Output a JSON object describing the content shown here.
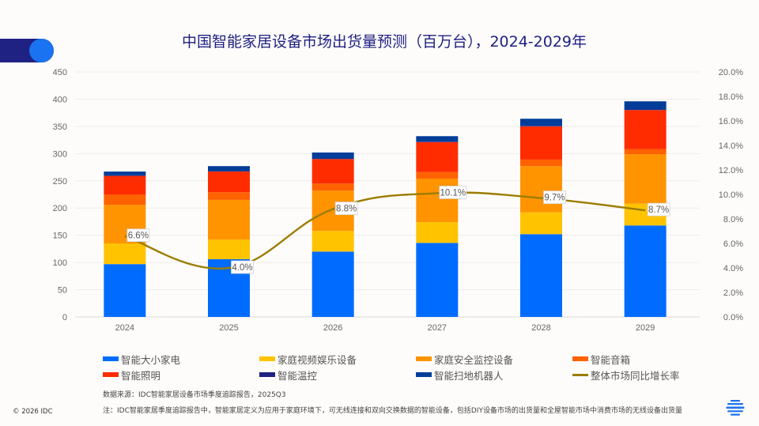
{
  "header": {
    "title": "中国智能家居设备市场出货量预测（百万台），2024-2029年"
  },
  "chart_data": {
    "type": "bar",
    "stacked": true,
    "title": "中国智能家居设备市场出货量预测（百万台），2024-2029年",
    "categories": [
      "2024",
      "2025",
      "2026",
      "2027",
      "2028",
      "2029"
    ],
    "y_left": {
      "min": 0,
      "max": 450,
      "ticks": [
        "0",
        "50",
        "100",
        "150",
        "200",
        "250",
        "300",
        "350",
        "400",
        "450"
      ]
    },
    "y_right": {
      "min": 0,
      "max": 20,
      "ticks": [
        "0.0%",
        "2.0%",
        "4.0%",
        "6.0%",
        "8.0%",
        "10.0%",
        "12.0%",
        "14.0%",
        "16.0%",
        "18.0%",
        "20.0%"
      ]
    },
    "grid": true,
    "legend_position": "bottom",
    "series": [
      {
        "name": "智能大小家电",
        "color": "#006cff",
        "values": [
          97,
          106,
          120,
          136,
          152,
          168
        ]
      },
      {
        "name": "家庭视频娱乐设备",
        "color": "#ffc300",
        "values": [
          38,
          36,
          38,
          38,
          40,
          40
        ]
      },
      {
        "name": "家庭安全监控设备",
        "color": "#ff9400",
        "values": [
          71,
          73,
          74,
          80,
          85,
          91
        ]
      },
      {
        "name": "智能音箱",
        "color": "#ff6200",
        "values": [
          19,
          14,
          13,
          12,
          12,
          9
        ]
      },
      {
        "name": "智能照明",
        "color": "#ff2c00",
        "values": [
          34,
          38,
          45,
          55,
          61,
          72
        ]
      },
      {
        "name": "智能温控",
        "color": "#1f2183",
        "values": [
          1,
          1,
          1,
          1,
          1,
          1
        ]
      },
      {
        "name": "智能扫地机器人",
        "color": "#003d99",
        "values": [
          7,
          9,
          11,
          10,
          13,
          15
        ]
      }
    ],
    "line_series": {
      "name": "整体市场同比增长率",
      "color": "#9c7c00",
      "axis": "right",
      "values": [
        6.6,
        4.0,
        8.8,
        10.1,
        9.7,
        8.7
      ],
      "labels": [
        "6.6%",
        "4.0%",
        "8.8%",
        "10.1%",
        "9.7%",
        "8.7%"
      ]
    }
  },
  "legend": [
    {
      "label": "智能大小家电",
      "color": "#006cff",
      "type": "bar"
    },
    {
      "label": "家庭视频娱乐设备",
      "color": "#ffc300",
      "type": "bar"
    },
    {
      "label": "家庭安全监控设备",
      "color": "#ff9400",
      "type": "bar"
    },
    {
      "label": "智能音箱",
      "color": "#ff6200",
      "type": "bar"
    },
    {
      "label": "智能照明",
      "color": "#ff2c00",
      "type": "bar"
    },
    {
      "label": "智能温控",
      "color": "#1f2183",
      "type": "bar"
    },
    {
      "label": "智能扫地机器人",
      "color": "#003d99",
      "type": "bar"
    },
    {
      "label": "整体市场同比增长率",
      "color": "#9c7c00",
      "type": "line"
    }
  ],
  "footer": {
    "source": "数据来源：IDC智能家居设备市场季度追踪报告，2025Q3",
    "note": "注：IDC智能家居季度追踪报告中，智能家居定义为应用于家庭环境下，可无线连接和双向交换数据的智能设备，包括DIY设备市场的出货量和全屋智能市场中消费市场的无线设备出货量",
    "copyright": "© 2026 IDC"
  },
  "logo": {
    "icon": "idc-globe-icon",
    "color": "#1a73f0"
  }
}
